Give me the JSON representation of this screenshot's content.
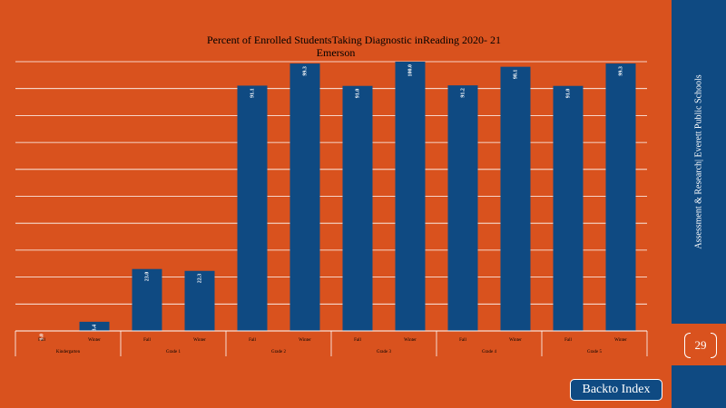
{
  "chart_data": {
    "type": "bar",
    "title": "Percent of Enrolled StudentsTaking Diagnostic inReading 2020- 21",
    "subtitle": "Emerson",
    "groups": [
      "Kindergarten",
      "Grade 1",
      "Grade 2",
      "Grade 3",
      "Grade 4",
      "Grade 5"
    ],
    "categories": [
      "Fall",
      "Winter"
    ],
    "values": [
      [
        0.0,
        3.4
      ],
      [
        23.0,
        22.3
      ],
      [
        91.1,
        99.3
      ],
      [
        91.0,
        100.0
      ],
      [
        91.2,
        98.1
      ],
      [
        91.0,
        99.3
      ]
    ],
    "data_labels": [
      [
        "0.0",
        "3.4"
      ],
      [
        "23.0",
        "22.3"
      ],
      [
        "91.1",
        "99.3"
      ],
      [
        "91.0",
        "100.0"
      ],
      [
        "91.2",
        "98.1"
      ],
      [
        "91.0",
        "99.3"
      ]
    ],
    "ylim": [
      0,
      100
    ],
    "grid": true,
    "bar_color": "#0F4A82",
    "background_color": "#D9521E"
  },
  "sidebar": {
    "text": "Assessment & Research|   Everett Public Schools",
    "page_number": "29"
  },
  "back_button": {
    "label": "Backto Index"
  }
}
